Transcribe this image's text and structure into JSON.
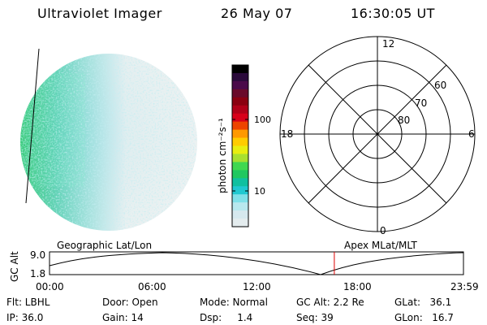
{
  "header": {
    "title": "Ultraviolet Imager",
    "date": "26 May 07",
    "time": "16:30:05 UT"
  },
  "colorbar": {
    "label": "photon cm⁻²s⁻¹",
    "ticks": [
      "100",
      "10"
    ],
    "colors": [
      "#000000",
      "#2a0a3a",
      "#4a0a4a",
      "#6a0a2a",
      "#8a0010",
      "#b00018",
      "#d8001a",
      "#ee4400",
      "#ff9900",
      "#ffcc00",
      "#e8ee10",
      "#a8e030",
      "#40d850",
      "#20c860",
      "#10c0a0",
      "#20c8d0",
      "#80e0e8",
      "#b8e8ee",
      "#d6e8ee",
      "#e4ecee"
    ]
  },
  "polar_plot": {
    "mlt_labels": [
      "12",
      "18",
      "6",
      "0"
    ],
    "mlat_labels": [
      "60",
      "70",
      "80"
    ]
  },
  "altitude_plot": {
    "left_label": "Geographic Lat/Lon",
    "right_label": "Apex  MLat/MLT",
    "ylabel": "GC Alt",
    "yticks": [
      "9.0",
      "1.8"
    ],
    "xticks": [
      "00:00",
      "06:00",
      "12:00",
      "18:00",
      "23:59"
    ],
    "marker_time": "16:30",
    "marker_color": "#dd0000"
  },
  "info": {
    "flt": "Flt: LBHL",
    "ip": "IP: 36.0",
    "door": "Door: Open",
    "gain": "Gain: 14",
    "mode": "Mode: Normal",
    "dsp": "Dsp:     1.4",
    "gc_alt": "GC Alt: 2.2 Re",
    "seq": "Seq: 39",
    "glat": "GLat:   36.1",
    "glon": "GLon:   16.7"
  }
}
